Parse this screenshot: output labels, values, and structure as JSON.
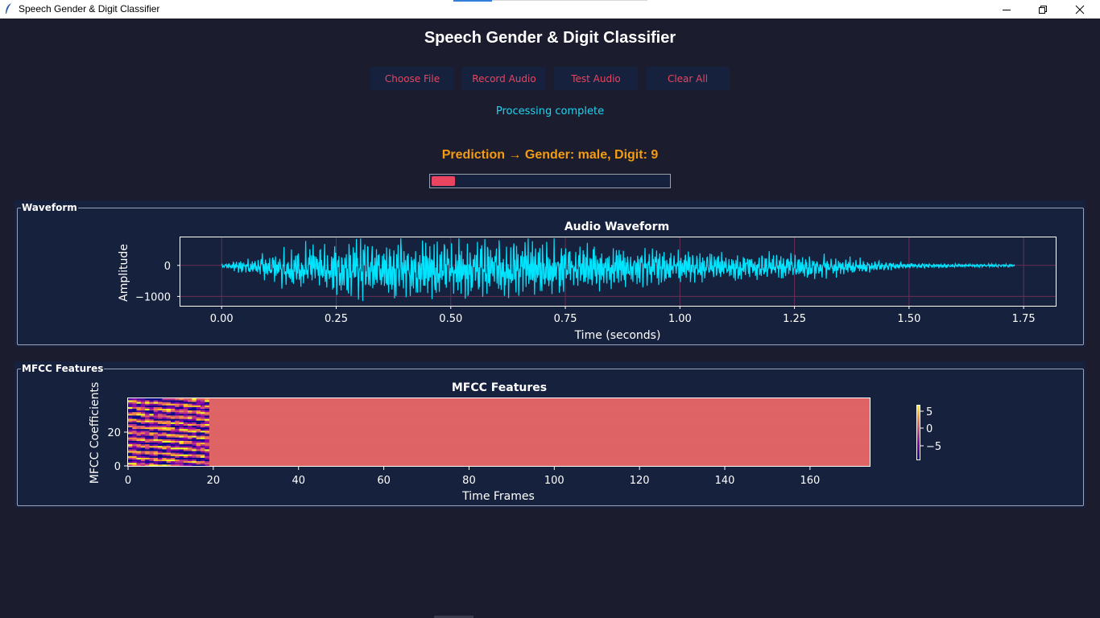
{
  "window": {
    "title": "Speech Gender & Digit Classifier"
  },
  "app": {
    "title": "Speech Gender & Digit Classifier"
  },
  "buttons": {
    "choose_file": "Choose File",
    "record_audio": "Record Audio",
    "test_audio": "Test Audio",
    "clear_all": "Clear All"
  },
  "status": "Processing complete",
  "prediction": "Prediction → Gender: male, Digit: 9",
  "progress": {
    "value": 0.1
  },
  "colors": {
    "background": "#1b1c2e",
    "panel": "#16213e",
    "accent": "#e94560",
    "status": "#22d3ee",
    "prediction": "#f39c12",
    "waveform": "#00e5ff"
  },
  "waveform_panel": {
    "label": "Waveform"
  },
  "mfcc_panel": {
    "label": "MFCC Features"
  },
  "chart_data": [
    {
      "type": "line",
      "title": "Audio Waveform",
      "xlabel": "Time (seconds)",
      "ylabel": "Amplitude",
      "xlim": [
        -0.09,
        1.82
      ],
      "ylim": [
        -1300,
        900
      ],
      "x_ticks": [
        "0.00",
        "0.25",
        "0.50",
        "0.75",
        "1.00",
        "1.25",
        "1.50",
        "1.75"
      ],
      "y_ticks": [
        "0",
        "−1000"
      ],
      "grid": true,
      "duration": 1.73,
      "envelope": {
        "t": [
          0,
          0.02,
          0.05,
          0.1,
          0.15,
          0.2,
          0.3,
          0.4,
          0.5,
          0.6,
          0.7,
          0.8,
          0.9,
          1.0,
          1.1,
          1.2,
          1.3,
          1.4,
          1.45,
          1.5,
          1.6,
          1.73
        ],
        "amplitude": [
          50,
          120,
          250,
          450,
          650,
          800,
          950,
          950,
          920,
          880,
          820,
          780,
          600,
          500,
          450,
          400,
          350,
          250,
          150,
          80,
          60,
          40
        ]
      }
    },
    {
      "type": "heatmap",
      "title": "MFCC Features",
      "xlabel": "Time Frames",
      "ylabel": "MFCC Coefficients",
      "xlim": [
        0,
        174
      ],
      "ylim": [
        0,
        40
      ],
      "x_ticks": [
        "0",
        "20",
        "40",
        "60",
        "80",
        "100",
        "120",
        "140",
        "160"
      ],
      "y_ticks": [
        "0",
        "20"
      ],
      "active_frames": 19,
      "colormap": "plasma",
      "colorbar_ticks": [
        "5",
        "0",
        "−5"
      ]
    }
  ]
}
